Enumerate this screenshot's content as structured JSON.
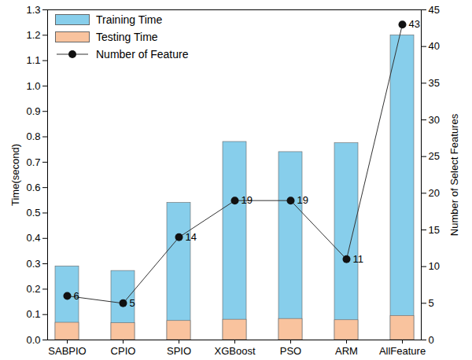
{
  "chart_data": {
    "type": "bar",
    "categories": [
      "SABPIO",
      "CPIO",
      "SPIO",
      "XGBoost",
      "PSO",
      "ARM",
      "AllFeature"
    ],
    "series": [
      {
        "name": "Training Time",
        "color": "#87ceeb",
        "values": [
          0.29,
          0.272,
          0.54,
          0.78,
          0.74,
          0.775,
          1.2
        ]
      },
      {
        "name": "Testing Time",
        "color": "#f9c39e",
        "values": [
          0.068,
          0.066,
          0.075,
          0.08,
          0.083,
          0.078,
          0.095
        ]
      },
      {
        "name": "Number of Feature",
        "type": "line",
        "axis": "y2",
        "color": "#333333",
        "marker": "circle",
        "data_labels": true,
        "values": [
          6,
          5,
          14,
          19,
          19,
          11,
          43
        ]
      }
    ],
    "y_label": "Time(second)",
    "y2_label": "Number of Select Features",
    "ylim": [
      0,
      1.3
    ],
    "yticks": [
      {
        "value": 0,
        "label": "0.0"
      },
      0.1,
      0.2,
      0.3,
      0.4,
      0.5,
      0.6,
      0.7,
      0.8,
      0.9,
      {
        "value": 1,
        "label": "1.0"
      },
      1.1,
      1.2,
      1.3
    ],
    "y2lim": [
      0,
      45
    ],
    "y2ticks": [
      0,
      5,
      10,
      15,
      20,
      25,
      30,
      35,
      40,
      45
    ],
    "legend": "upper left",
    "grid": false
  }
}
